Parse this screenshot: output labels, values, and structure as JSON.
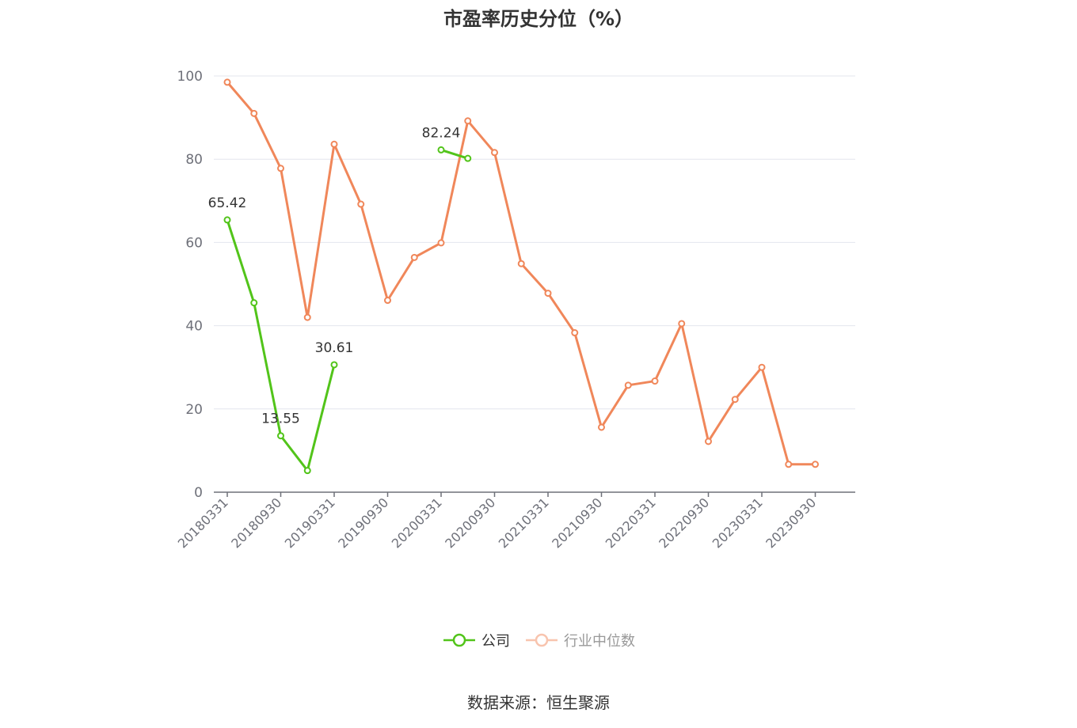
{
  "chart_data": {
    "type": "line",
    "title": "市盈率历史分位（%）",
    "ylim": [
      0,
      100
    ],
    "yticks": [
      0,
      20,
      40,
      60,
      80,
      100
    ],
    "categories": [
      "20180331",
      "20180630",
      "20180930",
      "20181231",
      "20190331",
      "20190630",
      "20190930",
      "20191231",
      "20200331",
      "20200630",
      "20200930",
      "20201231",
      "20210331",
      "20210630",
      "20210930",
      "20211231",
      "20220331",
      "20220630",
      "20220930",
      "20221231",
      "20230331",
      "20230630",
      "20230930"
    ],
    "x_tick_labels": [
      "20180331",
      "20180930",
      "20190331",
      "20190930",
      "20200331",
      "20200930",
      "20210331",
      "20210930",
      "20220331",
      "20220930",
      "20230331",
      "20230930"
    ],
    "grid": true,
    "legend_position": "bottom",
    "series": [
      {
        "name": "公司",
        "color": "#52c41a",
        "values": [
          65.42,
          45.5,
          13.55,
          5.2,
          30.61,
          null,
          null,
          null,
          82.24,
          80.2,
          null,
          null,
          null,
          null,
          null,
          null,
          null,
          null,
          null,
          null,
          null,
          null,
          null
        ],
        "labels": [
          "65.42",
          null,
          "13.55",
          null,
          "30.61",
          null,
          null,
          null,
          "82.24",
          null,
          null,
          null,
          null,
          null,
          null,
          null,
          null,
          null,
          null,
          null,
          null,
          null,
          null
        ]
      },
      {
        "name": "行业中位数",
        "color": "#f0875a",
        "values": [
          98.5,
          91.0,
          77.8,
          42.0,
          83.6,
          69.2,
          46.1,
          56.4,
          59.9,
          89.2,
          81.6,
          54.9,
          47.8,
          38.3,
          15.6,
          25.7,
          26.7,
          40.5,
          12.2,
          22.3,
          30.0,
          6.7,
          6.7
        ]
      }
    ]
  },
  "source": "数据来源：恒生聚源"
}
